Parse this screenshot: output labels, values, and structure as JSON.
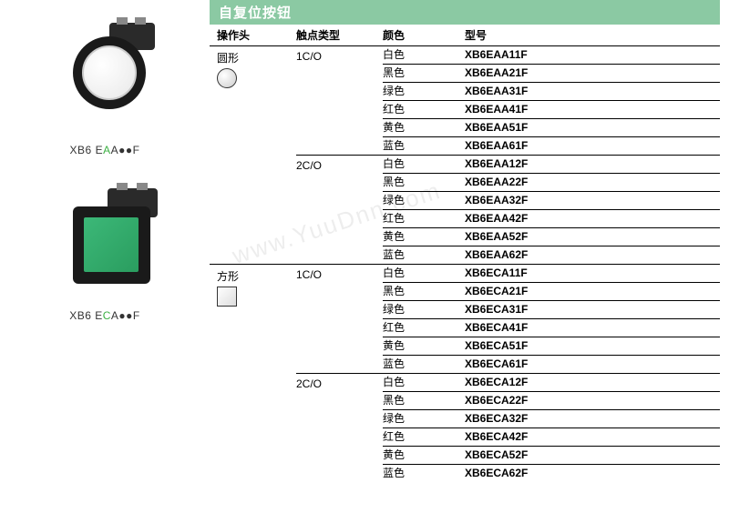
{
  "title": "自复位按钮",
  "headers": {
    "operator": "操作头",
    "contact": "触点类型",
    "color": "颜色",
    "model": "型号"
  },
  "leftProducts": [
    {
      "labelPrefix": "XB6 E",
      "labelGreen": "A",
      "labelSuffix": "A●●F"
    },
    {
      "labelPrefix": "XB6 E",
      "labelGreen": "C",
      "labelSuffix": "A●●F"
    }
  ],
  "sections": [
    {
      "operatorHead": "圆形",
      "iconShape": "round",
      "groups": [
        {
          "contact": "1C/O",
          "rows": [
            {
              "color": "白色",
              "model": "XB6EAA11F"
            },
            {
              "color": "黑色",
              "model": "XB6EAA21F"
            },
            {
              "color": "绿色",
              "model": "XB6EAA31F"
            },
            {
              "color": "红色",
              "model": "XB6EAA41F"
            },
            {
              "color": "黄色",
              "model": "XB6EAA51F"
            },
            {
              "color": "蓝色",
              "model": "XB6EAA61F"
            }
          ]
        },
        {
          "contact": "2C/O",
          "rows": [
            {
              "color": "白色",
              "model": "XB6EAA12F"
            },
            {
              "color": "黑色",
              "model": "XB6EAA22F"
            },
            {
              "color": "绿色",
              "model": "XB6EAA32F"
            },
            {
              "color": "红色",
              "model": "XB6EAA42F"
            },
            {
              "color": "黄色",
              "model": "XB6EAA52F"
            },
            {
              "color": "蓝色",
              "model": "XB6EAA62F"
            }
          ]
        }
      ]
    },
    {
      "operatorHead": "方形",
      "iconShape": "square",
      "groups": [
        {
          "contact": "1C/O",
          "rows": [
            {
              "color": "白色",
              "model": "XB6ECA11F"
            },
            {
              "color": "黑色",
              "model": "XB6ECA21F"
            },
            {
              "color": "绿色",
              "model": "XB6ECA31F"
            },
            {
              "color": "红色",
              "model": "XB6ECA41F"
            },
            {
              "color": "黄色",
              "model": "XB6ECA51F"
            },
            {
              "color": "蓝色",
              "model": "XB6ECA61F"
            }
          ]
        },
        {
          "contact": "2C/O",
          "rows": [
            {
              "color": "白色",
              "model": "XB6ECA12F"
            },
            {
              "color": "黑色",
              "model": "XB6ECA22F"
            },
            {
              "color": "绿色",
              "model": "XB6ECA32F"
            },
            {
              "color": "红色",
              "model": "XB6ECA42F"
            },
            {
              "color": "黄色",
              "model": "XB6ECA52F"
            },
            {
              "color": "蓝色",
              "model": "XB6ECA62F"
            }
          ]
        }
      ]
    }
  ],
  "watermark": "www.YuuDnn.com",
  "colors": {
    "titleBg": "#8bc9a3",
    "titleText": "#ffffff",
    "border": "#000000",
    "greenAccent": "#3cb043"
  }
}
